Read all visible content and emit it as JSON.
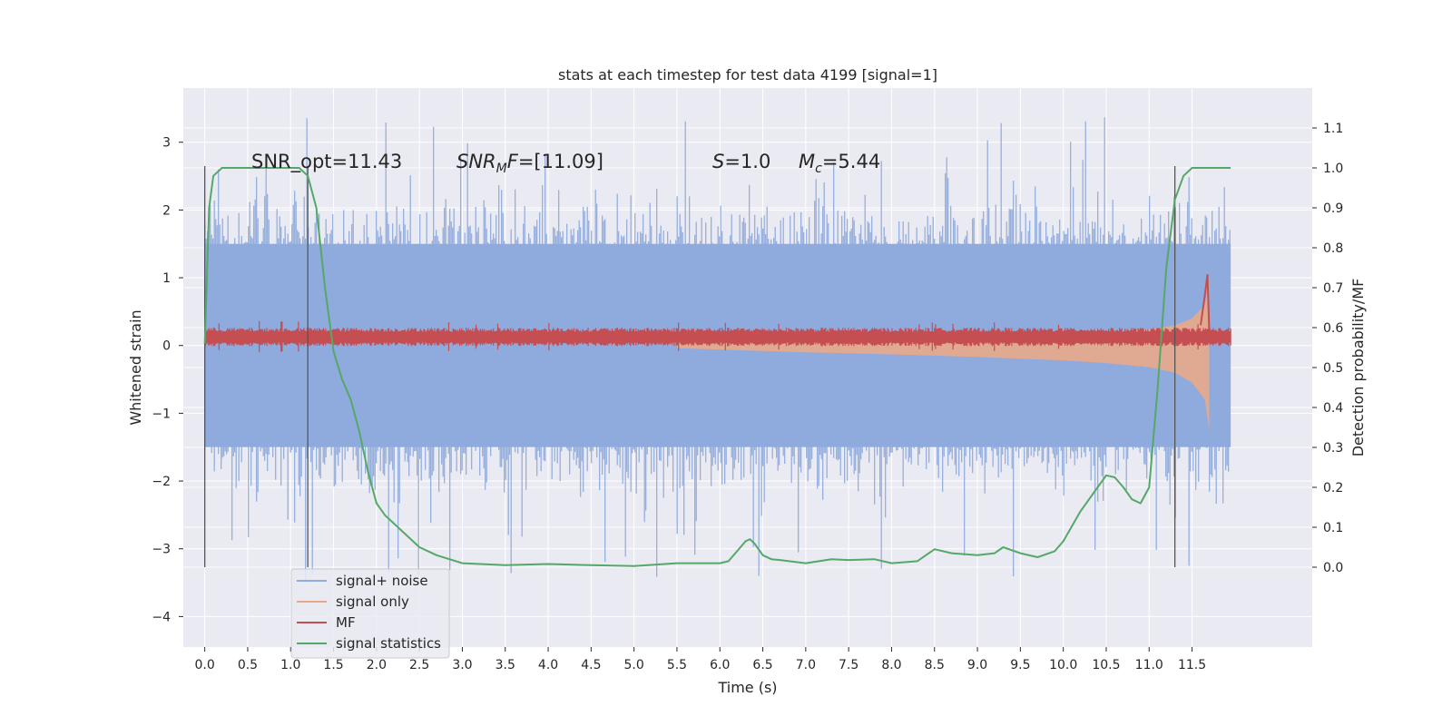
{
  "chart_data": {
    "type": "line",
    "title": "stats at each timestep for test data 4199 [signal=1]",
    "xlabel": "Time (s)",
    "ylabel": "Whitened strain",
    "y2label": "Detection probability/MF",
    "xlim": [
      -0.25,
      12.9
    ],
    "ylim": [
      -4.45,
      3.8
    ],
    "y2lim": [
      -0.2,
      1.2
    ],
    "xticks": [
      0.0,
      0.5,
      1.0,
      1.5,
      2.0,
      2.5,
      3.0,
      3.5,
      4.0,
      4.5,
      5.0,
      5.5,
      6.0,
      6.5,
      7.0,
      7.5,
      8.0,
      8.5,
      9.0,
      9.5,
      10.0,
      10.5,
      11.0,
      11.5
    ],
    "xtick_labels": [
      "0.0",
      "0.5",
      "1.0",
      "1.5",
      "2.0",
      "2.5",
      "3.0",
      "3.5",
      "4.0",
      "4.5",
      "5.0",
      "5.5",
      "6.0",
      "6.5",
      "7.0",
      "7.5",
      "8.0",
      "8.5",
      "9.0",
      "9.5",
      "10.0",
      "10.5",
      "11.0",
      "11.5"
    ],
    "yticks": [
      3,
      2,
      1,
      0,
      -1,
      -2,
      -3,
      -4
    ],
    "ytick_labels": [
      "3",
      "2",
      "1",
      "0",
      "−1",
      "−2",
      "−3",
      "−4"
    ],
    "y2ticks": [
      1.1,
      1.0,
      0.9,
      0.8,
      0.7,
      0.6,
      0.5,
      0.4,
      0.3,
      0.2,
      0.1,
      0.0
    ],
    "y2tick_labels": [
      "1.1",
      "1.0",
      "0.9",
      "0.8",
      "0.7",
      "0.6",
      "0.5",
      "0.4",
      "0.3",
      "0.2",
      "0.1",
      "0.0"
    ],
    "grid": true,
    "legend_position": "lower-left",
    "annotations": [
      {
        "text": "SNR_opt=11.43",
        "x": 0.2,
        "y": 2.65
      },
      {
        "text": "SNR_MF=[11.09]",
        "x": 2.6,
        "y": 2.65
      },
      {
        "text": "S=1.0",
        "x": 5.6,
        "y": 2.65
      },
      {
        "text": "M_c=5.44",
        "x": 6.6,
        "y": 2.65
      }
    ],
    "vertical_markers": [
      0.0,
      1.2,
      11.3
    ],
    "series": [
      {
        "name": "signal+ noise",
        "axis": "left",
        "color": "#8faadc",
        "x_start": 0.0,
        "x_end": 11.95,
        "envelope_upper": 1.5,
        "envelope_lower": -1.5,
        "spike_max": 3.45,
        "spike_min": -4.1
      },
      {
        "name": "signal only",
        "axis": "left",
        "color": "#e8a98a",
        "x": [
          5.5,
          6.0,
          7.0,
          8.0,
          9.0,
          10.0,
          10.5,
          11.0,
          11.3,
          11.5,
          11.65,
          11.7
        ],
        "upper": [
          0.06,
          0.08,
          0.1,
          0.12,
          0.14,
          0.18,
          0.2,
          0.24,
          0.3,
          0.4,
          0.6,
          1.0
        ],
        "lower": [
          -0.04,
          -0.06,
          -0.1,
          -0.13,
          -0.17,
          -0.22,
          -0.26,
          -0.32,
          -0.4,
          -0.55,
          -0.8,
          -1.25
        ]
      },
      {
        "name": "MF",
        "axis": "left",
        "color": "#c44e52",
        "x_start": 0.0,
        "x_end": 11.95,
        "center": 0.12,
        "amplitude": 0.12
      },
      {
        "name": "signal statistics",
        "axis": "right",
        "color": "#55a868",
        "x": [
          0.0,
          0.05,
          0.1,
          0.2,
          0.3,
          0.5,
          0.8,
          1.0,
          1.1,
          1.2,
          1.3,
          1.4,
          1.5,
          1.6,
          1.7,
          1.8,
          1.9,
          2.0,
          2.1,
          2.3,
          2.5,
          2.7,
          3.0,
          3.5,
          4.0,
          4.5,
          5.0,
          5.5,
          6.0,
          6.1,
          6.2,
          6.3,
          6.35,
          6.4,
          6.5,
          6.6,
          6.7,
          7.0,
          7.3,
          7.5,
          7.8,
          8.0,
          8.3,
          8.5,
          8.7,
          9.0,
          9.2,
          9.3,
          9.5,
          9.7,
          9.9,
          10.0,
          10.2,
          10.4,
          10.5,
          10.6,
          10.7,
          10.8,
          10.9,
          11.0,
          11.1,
          11.2,
          11.3,
          11.4,
          11.5,
          11.6,
          11.7,
          11.8,
          11.95
        ],
        "y": [
          0.56,
          0.9,
          0.98,
          1.0,
          1.0,
          1.0,
          1.0,
          1.0,
          1.0,
          0.98,
          0.9,
          0.7,
          0.54,
          0.47,
          0.42,
          0.34,
          0.24,
          0.16,
          0.13,
          0.09,
          0.05,
          0.03,
          0.01,
          0.005,
          0.008,
          0.005,
          0.003,
          0.01,
          0.01,
          0.015,
          0.04,
          0.065,
          0.07,
          0.06,
          0.03,
          0.02,
          0.018,
          0.01,
          0.02,
          0.018,
          0.02,
          0.01,
          0.015,
          0.045,
          0.035,
          0.03,
          0.035,
          0.05,
          0.035,
          0.025,
          0.04,
          0.065,
          0.14,
          0.2,
          0.23,
          0.225,
          0.2,
          0.17,
          0.16,
          0.2,
          0.45,
          0.75,
          0.92,
          0.98,
          1.0,
          1.0,
          1.0,
          1.0,
          1.0
        ]
      }
    ]
  }
}
